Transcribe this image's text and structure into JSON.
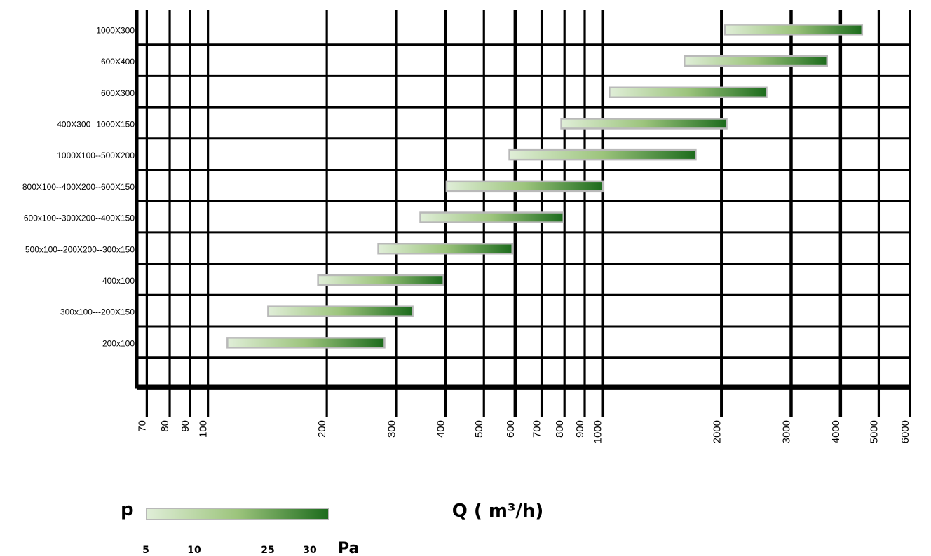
{
  "chart_data": {
    "type": "bar",
    "orientation": "horizontal-range",
    "x_scale": "log",
    "xlabel": "Q ( m³/h)",
    "xlim": [
      66,
      6000
    ],
    "x_ticks": [
      70,
      80,
      90,
      100,
      200,
      300,
      400,
      500,
      600,
      700,
      800,
      900,
      1000,
      2000,
      3000,
      4000,
      5000,
      6000
    ],
    "categories": [
      "1000X300",
      "600X400",
      "600X300",
      "400X300--1000X150",
      "1000X100--500X200",
      "800X100--400X200--600X150",
      "600x100--300X200--400X150",
      "500x100--200X200--300x150",
      "400x100",
      "300x100---200X150",
      "200x100"
    ],
    "ranges": [
      [
        2040,
        4540
      ],
      [
        1610,
        3700
      ],
      [
        1040,
        2600
      ],
      [
        785,
        2060
      ],
      [
        580,
        1720
      ],
      [
        402,
        1000
      ],
      [
        345,
        795
      ],
      [
        270,
        590
      ],
      [
        190,
        395
      ],
      [
        142,
        330
      ],
      [
        112,
        280
      ]
    ],
    "grid": true,
    "legend": {
      "label": "p",
      "unit": "Pa",
      "ticks": [
        "5",
        "10",
        "25",
        "30"
      ],
      "colors": [
        "#dcecd3",
        "#9bc27a",
        "#1e6e1e"
      ]
    }
  }
}
